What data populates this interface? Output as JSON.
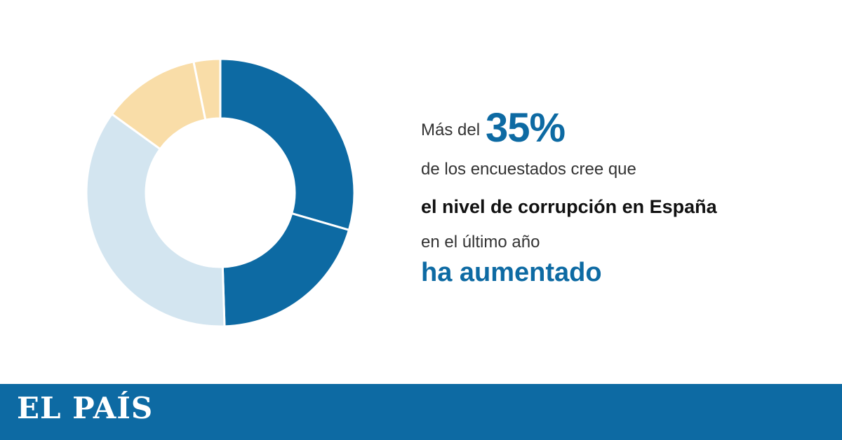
{
  "chart_data": {
    "type": "pie",
    "style": "donut",
    "slices": [
      {
        "value": 29.5,
        "color": "#0d6aa3"
      },
      {
        "value": 20.0,
        "color": "#0d6aa3"
      },
      {
        "value": 35.5,
        "color": "#d3e5f0"
      },
      {
        "value": 11.8,
        "color": "#f9dda8"
      },
      {
        "value": 3.2,
        "color": "#f9dda8"
      }
    ],
    "start_angle_deg": 0,
    "direction": "clockwise",
    "legend": false
  },
  "headline": {
    "prefix": "Más del",
    "value": "35%",
    "line2": "de los encuestados cree que",
    "line3": "el nivel de corrupción en España",
    "line4": "en el último año",
    "line5": "ha aumentado"
  },
  "footer": {
    "logo": "EL PAÍS"
  },
  "colors": {
    "brand": "#0d6aa3",
    "light_blue": "#d3e5f0",
    "light_orange": "#f9dda8"
  }
}
